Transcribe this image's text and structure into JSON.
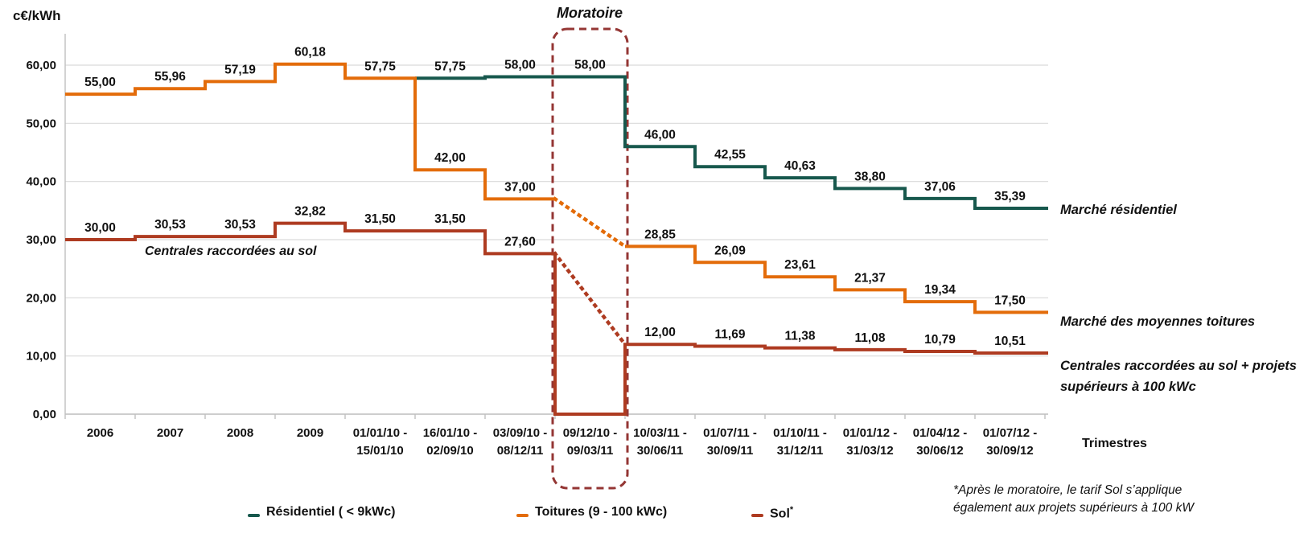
{
  "y_axis_title": "c€/kWh",
  "moratoire_label": "Moratoire",
  "x_axis_title": "Trimestres",
  "annotations": {
    "sol_left": "Centrales raccordées au sol",
    "right_residentiel": "Marché résidentiel",
    "right_toitures": "Marché des moyennes toitures",
    "right_sol_line1": "Centrales raccordées au sol + projets",
    "right_sol_line2": "supérieurs à 100 kWc"
  },
  "legend": {
    "residentiel": "Résidentiel ( < 9kWc)",
    "toitures": "Toitures (9 - 100 kWc)",
    "sol": "Sol",
    "sol_asterisk": "*"
  },
  "footnote": {
    "line1": "*Après le moratoire, le tarif Sol s’applique",
    "line2": "également aux projets supérieurs à 100 kW"
  },
  "colors": {
    "residentiel": "#17584D",
    "toitures": "#E36C0A",
    "sol": "#AE3B21",
    "moratoire_box": "#943634",
    "grid": "#DADADA",
    "axis": "#C0C0C0"
  },
  "chart_data": {
    "type": "line",
    "subtype": "step",
    "title": "",
    "xlabel": "Trimestres",
    "ylabel": "c€/kWh",
    "ylim": [
      0,
      60
    ],
    "grid": true,
    "legend_position": "bottom",
    "y_axis": {
      "values": [
        0,
        10,
        20,
        30,
        40,
        50,
        60
      ],
      "ticks": [
        "0,00",
        "10,00",
        "20,00",
        "30,00",
        "40,00",
        "50,00",
        "60,00"
      ]
    },
    "categories": [
      [
        "2006"
      ],
      [
        "2007"
      ],
      [
        "2008"
      ],
      [
        "2009"
      ],
      [
        "01/01/10 -",
        "15/01/10"
      ],
      [
        "16/01/10 -",
        "02/09/10"
      ],
      [
        "03/09/10 -",
        "08/12/11"
      ],
      [
        "09/12/10 -",
        "09/03/11"
      ],
      [
        "10/03/11 -",
        "30/06/11"
      ],
      [
        "01/07/11 -",
        "30/09/11"
      ],
      [
        "01/10/11 -",
        "31/12/11"
      ],
      [
        "01/01/12 -",
        "31/03/12"
      ],
      [
        "01/04/12 -",
        "30/06/12"
      ],
      [
        "01/07/12 -",
        "30/09/12"
      ]
    ],
    "moratoire_column": 7,
    "series": [
      {
        "id": "residentiel",
        "name": "Résidentiel ( < 9kWc)",
        "color": "#17584D",
        "values": [
          null,
          null,
          null,
          null,
          null,
          57.75,
          58.0,
          58.0,
          46.0,
          42.55,
          40.63,
          38.8,
          37.06,
          35.39
        ],
        "labels": [
          null,
          null,
          null,
          null,
          null,
          "57,75",
          "58,00",
          "58,00",
          "46,00",
          "42,55",
          "40,63",
          "38,80",
          "37,06",
          "35,39"
        ]
      },
      {
        "id": "toitures",
        "name": "Toitures (9 - 100 kWc)",
        "color": "#E36C0A",
        "values": [
          55.0,
          55.96,
          57.19,
          60.18,
          57.75,
          42.0,
          37.0,
          null,
          28.85,
          26.09,
          23.61,
          21.37,
          19.34,
          17.5
        ],
        "labels": [
          "55,00",
          "55,96",
          "57,19",
          "60,18",
          "57,75",
          "42,00",
          "37,00",
          null,
          "28,85",
          "26,09",
          "23,61",
          "21,37",
          "19,34",
          "17,50"
        ],
        "dotted": {
          "col": 7,
          "from": 37.0,
          "to": 28.85
        }
      },
      {
        "id": "sol",
        "name": "Sol",
        "color": "#AE3B21",
        "values": [
          30.0,
          30.53,
          30.53,
          32.82,
          31.5,
          31.5,
          27.6,
          0,
          12.0,
          11.69,
          11.38,
          11.08,
          10.79,
          10.51
        ],
        "labels": [
          "30,00",
          "30,53",
          "30,53",
          "32,82",
          "31,50",
          "31,50",
          "27,60",
          null,
          "12,00",
          "11,69",
          "11,38",
          "11,08",
          "10,79",
          "10,51"
        ],
        "dotted": {
          "col": 7,
          "from": 27.6,
          "to": 12.0
        }
      }
    ]
  }
}
